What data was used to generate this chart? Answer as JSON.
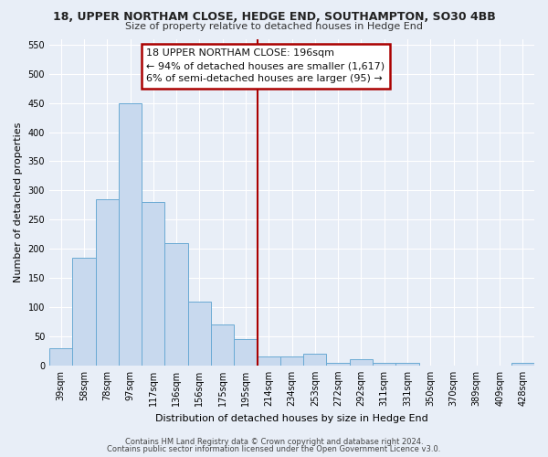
{
  "title": "18, UPPER NORTHAM CLOSE, HEDGE END, SOUTHAMPTON, SO30 4BB",
  "subtitle": "Size of property relative to detached houses in Hedge End",
  "xlabel": "Distribution of detached houses by size in Hedge End",
  "ylabel": "Number of detached properties",
  "bar_labels": [
    "39sqm",
    "58sqm",
    "78sqm",
    "97sqm",
    "117sqm",
    "136sqm",
    "156sqm",
    "175sqm",
    "195sqm",
    "214sqm",
    "234sqm",
    "253sqm",
    "272sqm",
    "292sqm",
    "311sqm",
    "331sqm",
    "350sqm",
    "370sqm",
    "389sqm",
    "409sqm",
    "428sqm"
  ],
  "bar_values": [
    30,
    185,
    285,
    450,
    280,
    210,
    110,
    70,
    45,
    15,
    15,
    20,
    5,
    10,
    5,
    5,
    0,
    0,
    0,
    0,
    5
  ],
  "bar_color": "#c8d9ee",
  "bar_edge_color": "#6aaad4",
  "vline_color": "#aa0000",
  "vline_x_index": 8.5,
  "ylim": [
    0,
    560
  ],
  "yticks": [
    0,
    50,
    100,
    150,
    200,
    250,
    300,
    350,
    400,
    450,
    500,
    550
  ],
  "annotation_title": "18 UPPER NORTHAM CLOSE: 196sqm",
  "annotation_line1": "← 94% of detached houses are smaller (1,617)",
  "annotation_line2": "6% of semi-detached houses are larger (95) →",
  "annotation_box_color": "#ffffff",
  "annotation_box_edge": "#aa0000",
  "footer1": "Contains HM Land Registry data © Crown copyright and database right 2024.",
  "footer2": "Contains public sector information licensed under the Open Government Licence v3.0.",
  "background_color": "#e8eef7",
  "grid_color": "#ffffff",
  "title_fontsize": 9,
  "subtitle_fontsize": 8,
  "label_fontsize": 8,
  "tick_fontsize": 7,
  "ann_fontsize": 8,
  "footer_fontsize": 6
}
